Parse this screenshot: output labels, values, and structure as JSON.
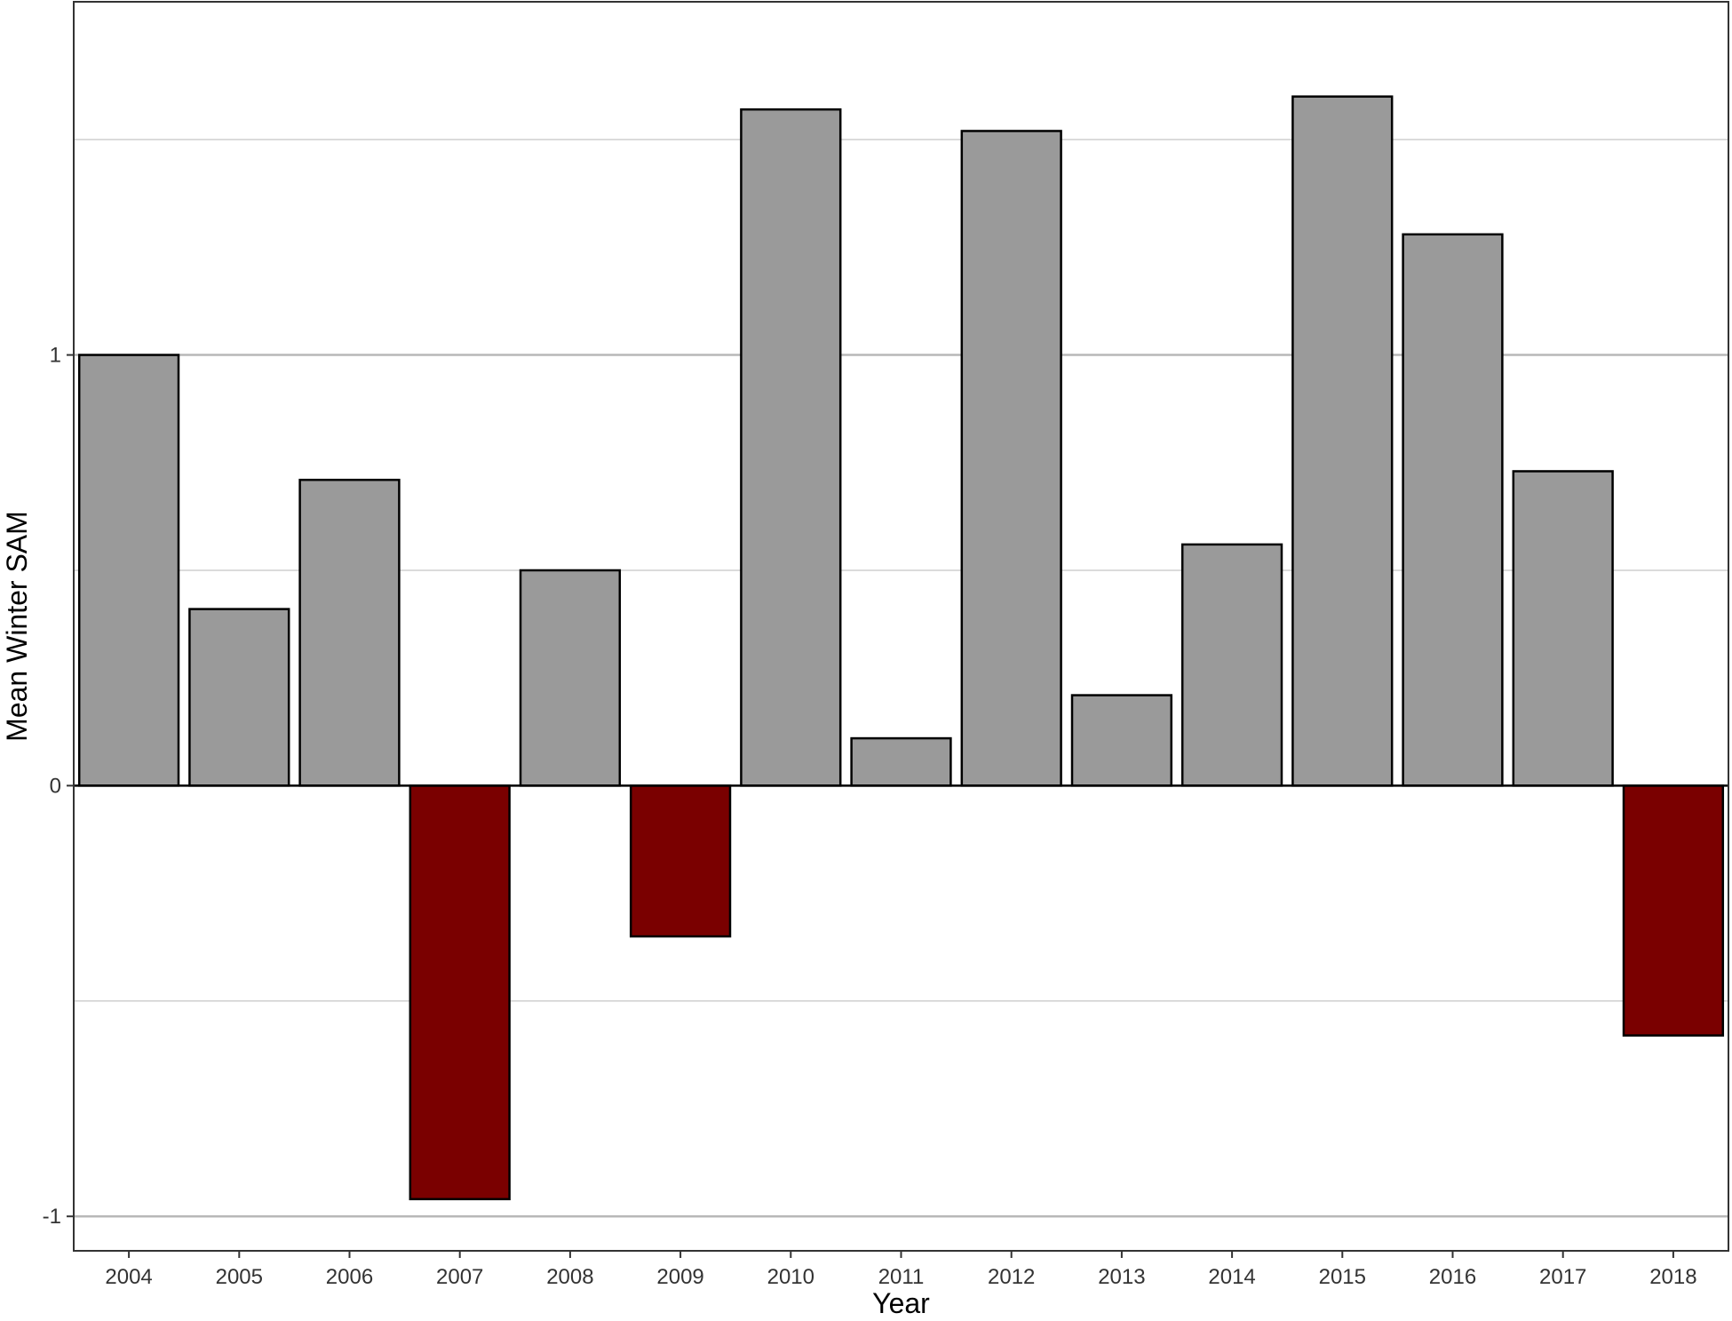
{
  "chart_data": {
    "type": "bar",
    "title": "",
    "xlabel": "Year",
    "ylabel": "Mean Winter SAM",
    "categories": [
      "2004",
      "2005",
      "2006",
      "2007",
      "2008",
      "2009",
      "2010",
      "2011",
      "2012",
      "2013",
      "2014",
      "2015",
      "2016",
      "2017",
      "2018"
    ],
    "values": [
      1.0,
      0.41,
      0.71,
      -0.96,
      0.5,
      -0.35,
      1.57,
      0.11,
      1.52,
      0.21,
      0.56,
      1.6,
      1.28,
      0.73,
      -0.58
    ],
    "ylim": [
      -1.08,
      1.82
    ],
    "yticks": [
      -1,
      0,
      1
    ],
    "ytick_labels": [
      "-1",
      "0",
      "1"
    ],
    "minor_gridlines": [
      -0.5,
      0.5,
      1.5
    ],
    "grid": true,
    "legend": "none",
    "colors": {
      "positive": "#9a9a9a",
      "negative": "#7a0000",
      "bar_outline": "#000000",
      "grid_major": "#b8b8b8",
      "grid_minor": "#cfcfcf",
      "panel_border": "#333333",
      "zero_line": "#000000"
    }
  }
}
